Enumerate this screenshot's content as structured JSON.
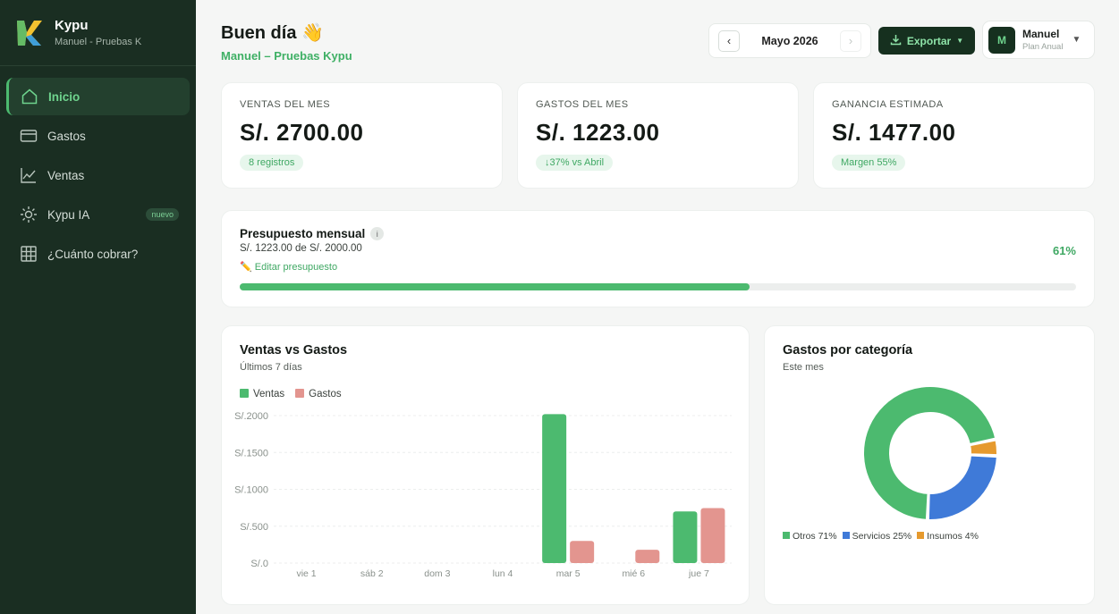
{
  "brand": {
    "name": "Kypu",
    "subtitle": "Manuel - Pruebas K"
  },
  "sidebar": {
    "items": [
      {
        "label": "Inicio",
        "icon": "home-icon",
        "active": true
      },
      {
        "label": "Gastos",
        "icon": "card-icon"
      },
      {
        "label": "Ventas",
        "icon": "chart-line-icon"
      },
      {
        "label": "Kypu IA",
        "icon": "sun-icon",
        "badge": "nuevo"
      },
      {
        "label": "¿Cuánto cobrar?",
        "icon": "grid-icon"
      }
    ]
  },
  "header": {
    "greeting": "Buen día 👋",
    "subtitle": "Manuel – Pruebas Kypu",
    "month": "Mayo 2026",
    "prev_arrow": "‹",
    "next_arrow": "›",
    "export_label": "Exportar",
    "user_name": "Manuel",
    "user_plan": "Plan Anual",
    "avatar_initial": "M"
  },
  "kpis": [
    {
      "label": "VENTAS DEL MES",
      "value": "S/. 2700.00",
      "chip": "8 registros"
    },
    {
      "label": "GASTOS DEL MES",
      "value": "S/. 1223.00",
      "chip": "↓37% vs Abril"
    },
    {
      "label": "GANANCIA ESTIMADA",
      "value": "S/. 1477.00",
      "chip": "Margen 55%"
    }
  ],
  "budget": {
    "title": "Presupuesto mensual",
    "info": "i",
    "summary": "S/. 1223.00 de S/. 2000.00",
    "edit_label": "✏️ Editar presupuesto",
    "percent_label": "61%",
    "progress": 0.61
  },
  "colors": {
    "ventas": "#4cba6f",
    "gastos": "#e3958f",
    "otros": "#4cba6f",
    "servicios": "#3f7ad8",
    "insumos": "#e69a2e"
  },
  "chart_data": [
    {
      "type": "bar",
      "title": "Ventas vs Gastos",
      "subtitle": "Últimos 7 días",
      "categories": [
        "vie 1",
        "sáb 2",
        "dom 3",
        "lun 4",
        "mar 5",
        "mié 6",
        "jue 7"
      ],
      "series": [
        {
          "name": "Ventas",
          "values": [
            0,
            0,
            0,
            0,
            2020,
            0,
            700
          ]
        },
        {
          "name": "Gastos",
          "values": [
            0,
            0,
            0,
            0,
            300,
            180,
            745
          ]
        }
      ],
      "yticks": [
        "S/.0",
        "S/.500",
        "S/.1000",
        "S/.1500",
        "S/.2000"
      ],
      "ylim": [
        0,
        2000
      ],
      "legend": "top-left",
      "grid": true
    },
    {
      "type": "pie",
      "title": "Gastos por categoría",
      "subtitle": "Este mes",
      "slices": [
        {
          "name": "Otros 71%",
          "value": 71
        },
        {
          "name": "Servicios 25%",
          "value": 25
        },
        {
          "name": "Insumos 4%",
          "value": 4
        }
      ],
      "legend": "bottom"
    }
  ]
}
